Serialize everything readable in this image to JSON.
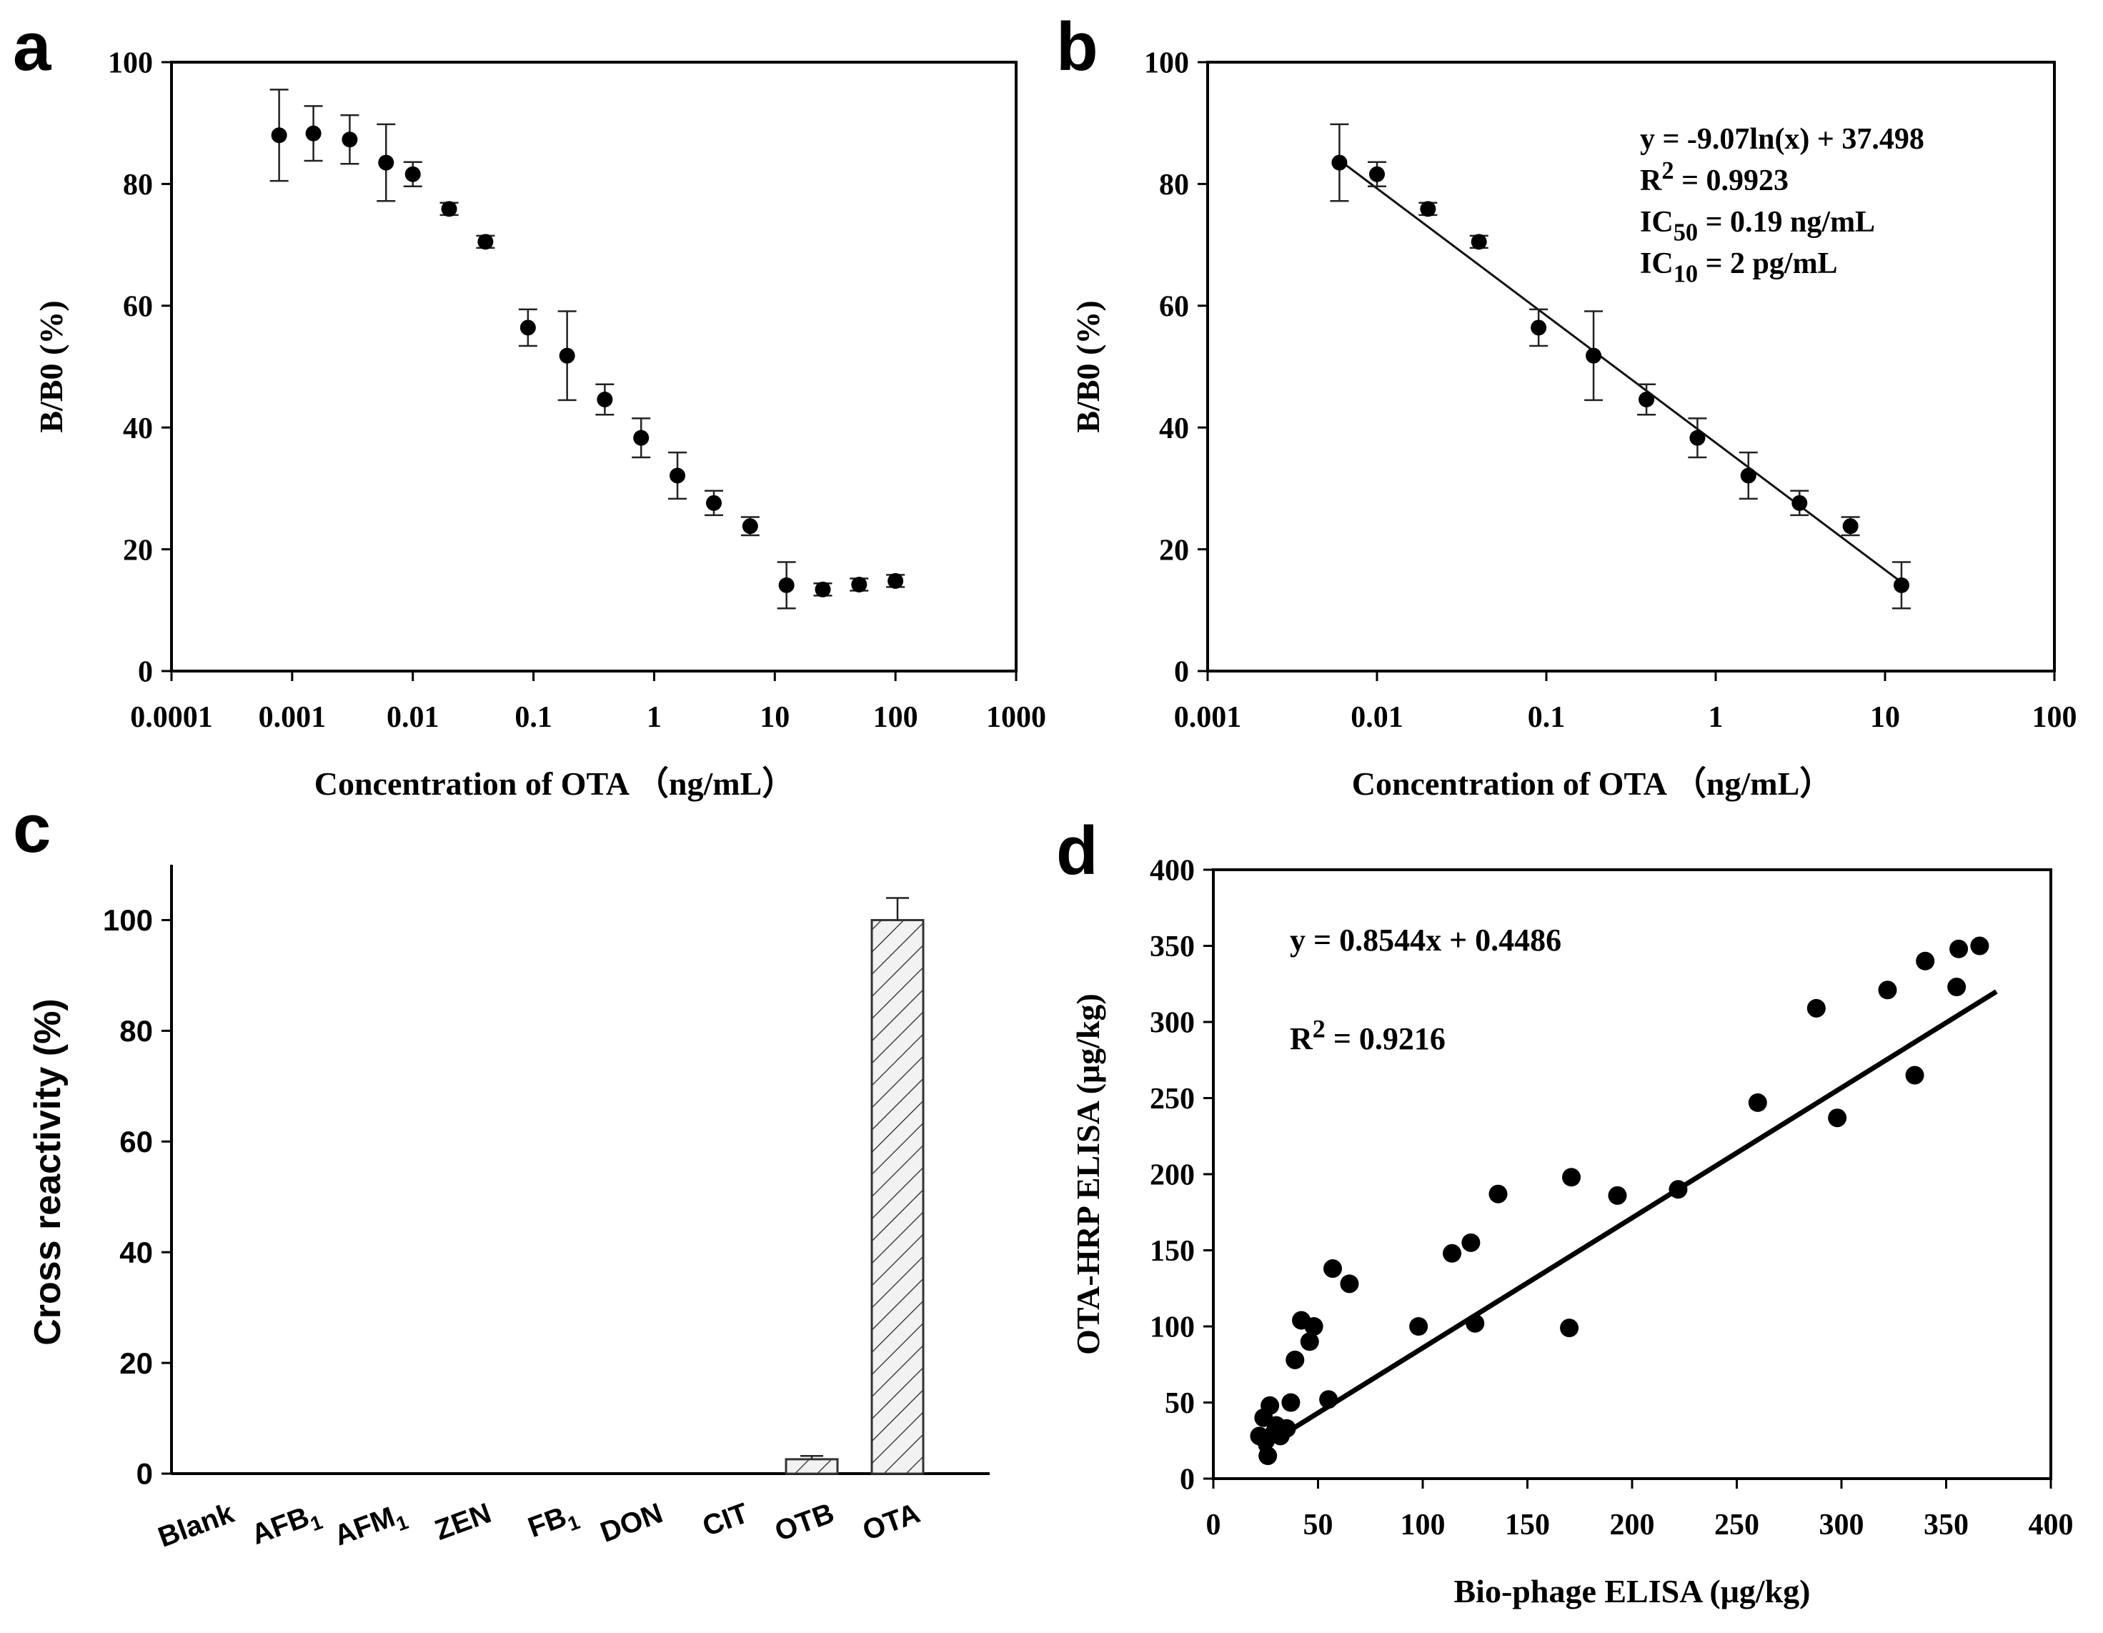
{
  "chart_data": [
    {
      "panel": "a",
      "type": "scatter",
      "xscale": "log",
      "xlim": [
        0.0001,
        1000
      ],
      "ylim": [
        0,
        100
      ],
      "xticks": [
        "0.0001",
        "0.001",
        "0.01",
        "0.1",
        "1",
        "10",
        "100",
        "1000"
      ],
      "yticks": [
        "0",
        "20",
        "40",
        "60",
        "80",
        "100"
      ],
      "xlabel": "Concentration of OTA （ng/mL）",
      "ylabel": "B/B0 (%)",
      "points": [
        {
          "x": 0.00078,
          "y": 88,
          "err": 7.5
        },
        {
          "x": 0.0015,
          "y": 88.3,
          "err": 4.5
        },
        {
          "x": 0.003,
          "y": 87.3,
          "err": 4
        },
        {
          "x": 0.006,
          "y": 83.5,
          "err": 6.3
        },
        {
          "x": 0.01,
          "y": 81.6,
          "err": 2
        },
        {
          "x": 0.02,
          "y": 75.9,
          "err": 1
        },
        {
          "x": 0.04,
          "y": 70.5,
          "err": 1
        },
        {
          "x": 0.09,
          "y": 56.4,
          "err": 3
        },
        {
          "x": 0.19,
          "y": 51.8,
          "err": 7.3
        },
        {
          "x": 0.39,
          "y": 44.6,
          "err": 2.5
        },
        {
          "x": 0.78,
          "y": 38.3,
          "err": 3.2
        },
        {
          "x": 1.56,
          "y": 32.1,
          "err": 3.8
        },
        {
          "x": 3.125,
          "y": 27.6,
          "err": 2
        },
        {
          "x": 6.25,
          "y": 23.8,
          "err": 1.5
        },
        {
          "x": 12.5,
          "y": 14.1,
          "err": 3.8
        },
        {
          "x": 25,
          "y": 13.4,
          "err": 1
        },
        {
          "x": 50,
          "y": 14.2,
          "err": 1
        },
        {
          "x": 100,
          "y": 14.8,
          "err": 1
        }
      ]
    },
    {
      "panel": "b",
      "type": "scatter",
      "xscale": "log",
      "xlim": [
        0.001,
        100
      ],
      "ylim": [
        0,
        100
      ],
      "xticks": [
        "0.001",
        "0.01",
        "0.1",
        "1",
        "10",
        "100"
      ],
      "yticks": [
        "0",
        "20",
        "40",
        "60",
        "80",
        "100"
      ],
      "xlabel": "Concentration of OTA （ng/mL）",
      "ylabel": "B/B0 (%)",
      "fit": {
        "kind": "log",
        "a": -9.07,
        "b": 37.498,
        "x_from": 0.006,
        "x_to": 12.5
      },
      "annotations": [
        {
          "main": "y = -9.07ln(x) + 37.498",
          "pre": "y = -9.07ln(x) + 37.498",
          "sup": "",
          "sub": "",
          "post": ""
        },
        {
          "main": "R2 = 0.9923",
          "pre": "R",
          "sup": "2",
          "sub": "",
          "post": " = 0.9923"
        },
        {
          "main": "IC50 = 0.19 ng/mL",
          "pre": "IC",
          "sup": "",
          "sub": "50",
          "post": " = 0.19 ng/mL"
        },
        {
          "main": "IC10 = 2 pg/mL",
          "pre": "IC",
          "sup": "",
          "sub": "10",
          "post": " = 2 pg/mL"
        }
      ],
      "points": [
        {
          "x": 0.006,
          "y": 83.5,
          "err": 6.3
        },
        {
          "x": 0.01,
          "y": 81.6,
          "err": 2
        },
        {
          "x": 0.02,
          "y": 75.9,
          "err": 1
        },
        {
          "x": 0.04,
          "y": 70.5,
          "err": 1
        },
        {
          "x": 0.09,
          "y": 56.4,
          "err": 3
        },
        {
          "x": 0.19,
          "y": 51.8,
          "err": 7.3
        },
        {
          "x": 0.39,
          "y": 44.6,
          "err": 2.5
        },
        {
          "x": 0.78,
          "y": 38.3,
          "err": 3.2
        },
        {
          "x": 1.56,
          "y": 32.1,
          "err": 3.8
        },
        {
          "x": 3.125,
          "y": 27.6,
          "err": 2
        },
        {
          "x": 6.25,
          "y": 23.8,
          "err": 1.5
        },
        {
          "x": 12.5,
          "y": 14.1,
          "err": 3.8
        }
      ]
    },
    {
      "panel": "c",
      "type": "bar",
      "categories": [
        {
          "base": "Blank",
          "sub": ""
        },
        {
          "base": "AFB",
          "sub": "1"
        },
        {
          "base": "AFM",
          "sub": "1"
        },
        {
          "base": "ZEN",
          "sub": ""
        },
        {
          "base": "FB",
          "sub": "1"
        },
        {
          "base": "DON",
          "sub": ""
        },
        {
          "base": "CIT",
          "sub": ""
        },
        {
          "base": "OTB",
          "sub": ""
        },
        {
          "base": "OTA",
          "sub": ""
        }
      ],
      "values": [
        0,
        0,
        0,
        0,
        0,
        0,
        0,
        2.6,
        100
      ],
      "errors": [
        0,
        0,
        0,
        0,
        0,
        0,
        0,
        0.6,
        4
      ],
      "ylim": [
        0,
        110
      ],
      "yticks": [
        "0",
        "20",
        "40",
        "60",
        "80",
        "100"
      ],
      "ylabel": "Cross reactivity (%)"
    },
    {
      "panel": "d",
      "type": "scatter",
      "xlim": [
        0,
        400
      ],
      "ylim": [
        0,
        400
      ],
      "xticks": [
        "0",
        "50",
        "100",
        "150",
        "200",
        "250",
        "300",
        "350",
        "400"
      ],
      "yticks": [
        "0",
        "50",
        "100",
        "150",
        "200",
        "250",
        "300",
        "350",
        "400"
      ],
      "xlabel": "Bio-phage ELISA (μg/kg)",
      "ylabel": "OTA-HRP ELISA (μg/kg)",
      "fit": {
        "kind": "linear",
        "slope": 0.8544,
        "intercept": 0.4486,
        "x_from": 22,
        "x_to": 374
      },
      "annotations": [
        {
          "main": "y = 0.8544x + 0.4486",
          "pre": "y = 0.8544x + 0.4486",
          "sup": "",
          "sub": "",
          "post": ""
        },
        {
          "main": "R2 = 0.9216",
          "pre": "R",
          "sup": "2",
          "sub": "",
          "post": " = 0.9216"
        }
      ],
      "points": [
        {
          "x": 22,
          "y": 28
        },
        {
          "x": 24,
          "y": 40
        },
        {
          "x": 25,
          "y": 25
        },
        {
          "x": 26,
          "y": 15
        },
        {
          "x": 27,
          "y": 48
        },
        {
          "x": 29,
          "y": 30
        },
        {
          "x": 30,
          "y": 35
        },
        {
          "x": 32,
          "y": 28
        },
        {
          "x": 35,
          "y": 33
        },
        {
          "x": 37,
          "y": 50
        },
        {
          "x": 39,
          "y": 78
        },
        {
          "x": 42,
          "y": 104
        },
        {
          "x": 46,
          "y": 90
        },
        {
          "x": 48,
          "y": 100
        },
        {
          "x": 55,
          "y": 52
        },
        {
          "x": 57,
          "y": 138
        },
        {
          "x": 65,
          "y": 128
        },
        {
          "x": 98,
          "y": 100
        },
        {
          "x": 114,
          "y": 148
        },
        {
          "x": 123,
          "y": 155
        },
        {
          "x": 125,
          "y": 102
        },
        {
          "x": 136,
          "y": 187
        },
        {
          "x": 170,
          "y": 99
        },
        {
          "x": 171,
          "y": 198
        },
        {
          "x": 193,
          "y": 186
        },
        {
          "x": 222,
          "y": 190
        },
        {
          "x": 260,
          "y": 247
        },
        {
          "x": 288,
          "y": 309
        },
        {
          "x": 298,
          "y": 237
        },
        {
          "x": 322,
          "y": 321
        },
        {
          "x": 335,
          "y": 265
        },
        {
          "x": 340,
          "y": 340
        },
        {
          "x": 355,
          "y": 323
        },
        {
          "x": 356,
          "y": 348
        },
        {
          "x": 366,
          "y": 350
        }
      ]
    }
  ],
  "panel_letters": [
    "a",
    "b",
    "c",
    "d"
  ]
}
